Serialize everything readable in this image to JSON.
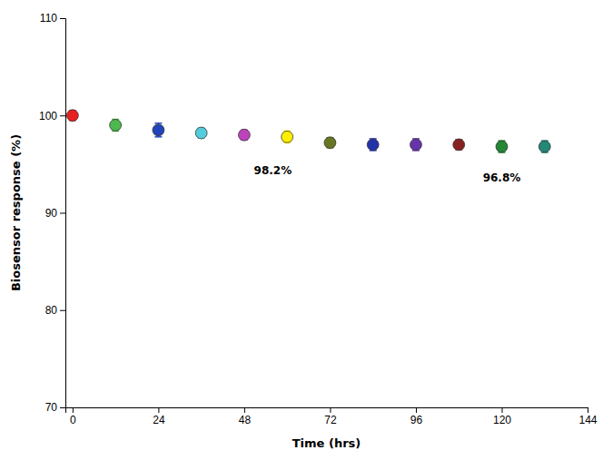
{
  "chart_data": {
    "type": "scatter",
    "x": [
      0,
      12,
      24,
      36,
      48,
      60,
      72,
      84,
      96,
      108,
      120,
      132
    ],
    "values": [
      100.0,
      99.0,
      98.5,
      98.2,
      98.0,
      97.8,
      97.2,
      97.0,
      97.0,
      97.0,
      96.8,
      96.8
    ],
    "errors": [
      0.5,
      0.6,
      0.7,
      0.5,
      0.5,
      0.6,
      0.5,
      0.6,
      0.6,
      0.5,
      0.6,
      0.6
    ],
    "colors": [
      "#e82020",
      "#4db84d",
      "#2244bb",
      "#55ccdd",
      "#bb44bb",
      "#ffee00",
      "#667722",
      "#2233aa",
      "#6633aa",
      "#882222",
      "#228833",
      "#228877"
    ],
    "marker": "circle",
    "annotations": [
      {
        "text": "98.2%",
        "x": 56,
        "y": 94.8
      },
      {
        "text": "96.8%",
        "x": 120,
        "y": 94.0
      }
    ],
    "xlabel": "Time (hrs)",
    "ylabel": "Biosensor response (%)",
    "xlim": [
      -2,
      144
    ],
    "ylim": [
      70,
      110
    ],
    "xticks": [
      0,
      24,
      48,
      72,
      96,
      120,
      144
    ],
    "yticks": [
      70,
      80,
      90,
      100,
      110
    ],
    "grid": false
  }
}
